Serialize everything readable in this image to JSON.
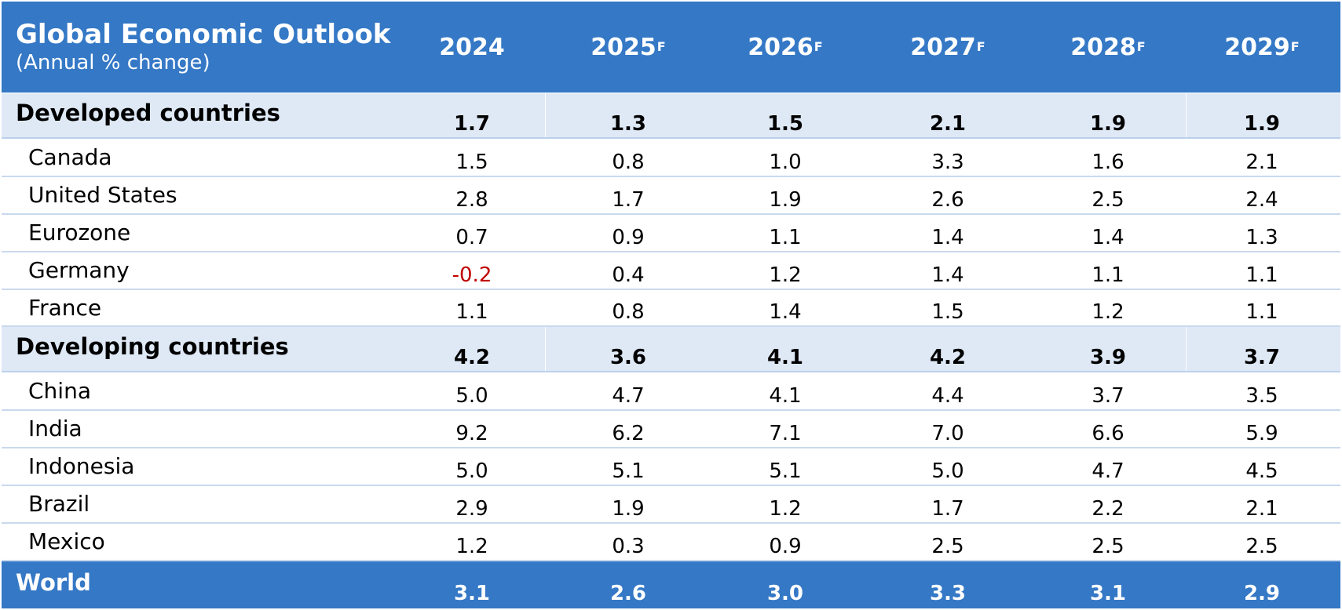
{
  "header": {
    "title": "Global Economic Outlook",
    "subtitle": "(Annual % change)",
    "columns": [
      {
        "year": "2024",
        "sup": ""
      },
      {
        "year": "2025",
        "sup": "F"
      },
      {
        "year": "2026",
        "sup": "F"
      },
      {
        "year": "2027",
        "sup": "F"
      },
      {
        "year": "2028",
        "sup": "F"
      },
      {
        "year": "2029",
        "sup": "F"
      }
    ]
  },
  "colors": {
    "header_bg": "#3478c6",
    "group_bg": "#dfe9f6",
    "negative": "#c00000",
    "text": "#000000"
  },
  "chart_data": {
    "type": "table",
    "title": "Global Economic Outlook",
    "subtitle": "(Annual % change)",
    "columns": [
      "2024",
      "2025F",
      "2026F",
      "2027F",
      "2028F",
      "2029F"
    ],
    "rows": [
      {
        "kind": "group",
        "label": "Developed countries",
        "values": [
          "1.7",
          "1.3",
          "1.5",
          "2.1",
          "1.9",
          "1.9"
        ]
      },
      {
        "kind": "item",
        "label": "Canada",
        "values": [
          "1.5",
          "0.8",
          "1.0",
          "3.3",
          "1.6",
          "2.1"
        ]
      },
      {
        "kind": "item",
        "label": "United States",
        "values": [
          "2.8",
          "1.7",
          "1.9",
          "2.6",
          "2.5",
          "2.4"
        ]
      },
      {
        "kind": "item",
        "label": "Eurozone",
        "values": [
          "0.7",
          "0.9",
          "1.1",
          "1.4",
          "1.4",
          "1.3"
        ]
      },
      {
        "kind": "item",
        "label": "Germany",
        "values": [
          "-0.2",
          "0.4",
          "1.2",
          "1.4",
          "1.1",
          "1.1"
        ]
      },
      {
        "kind": "item",
        "label": "France",
        "values": [
          "1.1",
          "0.8",
          "1.4",
          "1.5",
          "1.2",
          "1.1"
        ]
      },
      {
        "kind": "group",
        "label": "Developing countries",
        "values": [
          "4.2",
          "3.6",
          "4.1",
          "4.2",
          "3.9",
          "3.7"
        ]
      },
      {
        "kind": "item",
        "label": "China",
        "values": [
          "5.0",
          "4.7",
          "4.1",
          "4.4",
          "3.7",
          "3.5"
        ]
      },
      {
        "kind": "item",
        "label": "India",
        "values": [
          "9.2",
          "6.2",
          "7.1",
          "7.0",
          "6.6",
          "5.9"
        ]
      },
      {
        "kind": "item",
        "label": "Indonesia",
        "values": [
          "5.0",
          "5.1",
          "5.1",
          "5.0",
          "4.7",
          "4.5"
        ]
      },
      {
        "kind": "item",
        "label": "Brazil",
        "values": [
          "2.9",
          "1.9",
          "1.2",
          "1.7",
          "2.2",
          "2.1"
        ]
      },
      {
        "kind": "item",
        "label": "Mexico",
        "values": [
          "1.2",
          "0.3",
          "0.9",
          "2.5",
          "2.5",
          "2.5"
        ]
      },
      {
        "kind": "world",
        "label": "World",
        "values": [
          "3.1",
          "2.6",
          "3.0",
          "3.3",
          "3.1",
          "2.9"
        ]
      }
    ]
  }
}
